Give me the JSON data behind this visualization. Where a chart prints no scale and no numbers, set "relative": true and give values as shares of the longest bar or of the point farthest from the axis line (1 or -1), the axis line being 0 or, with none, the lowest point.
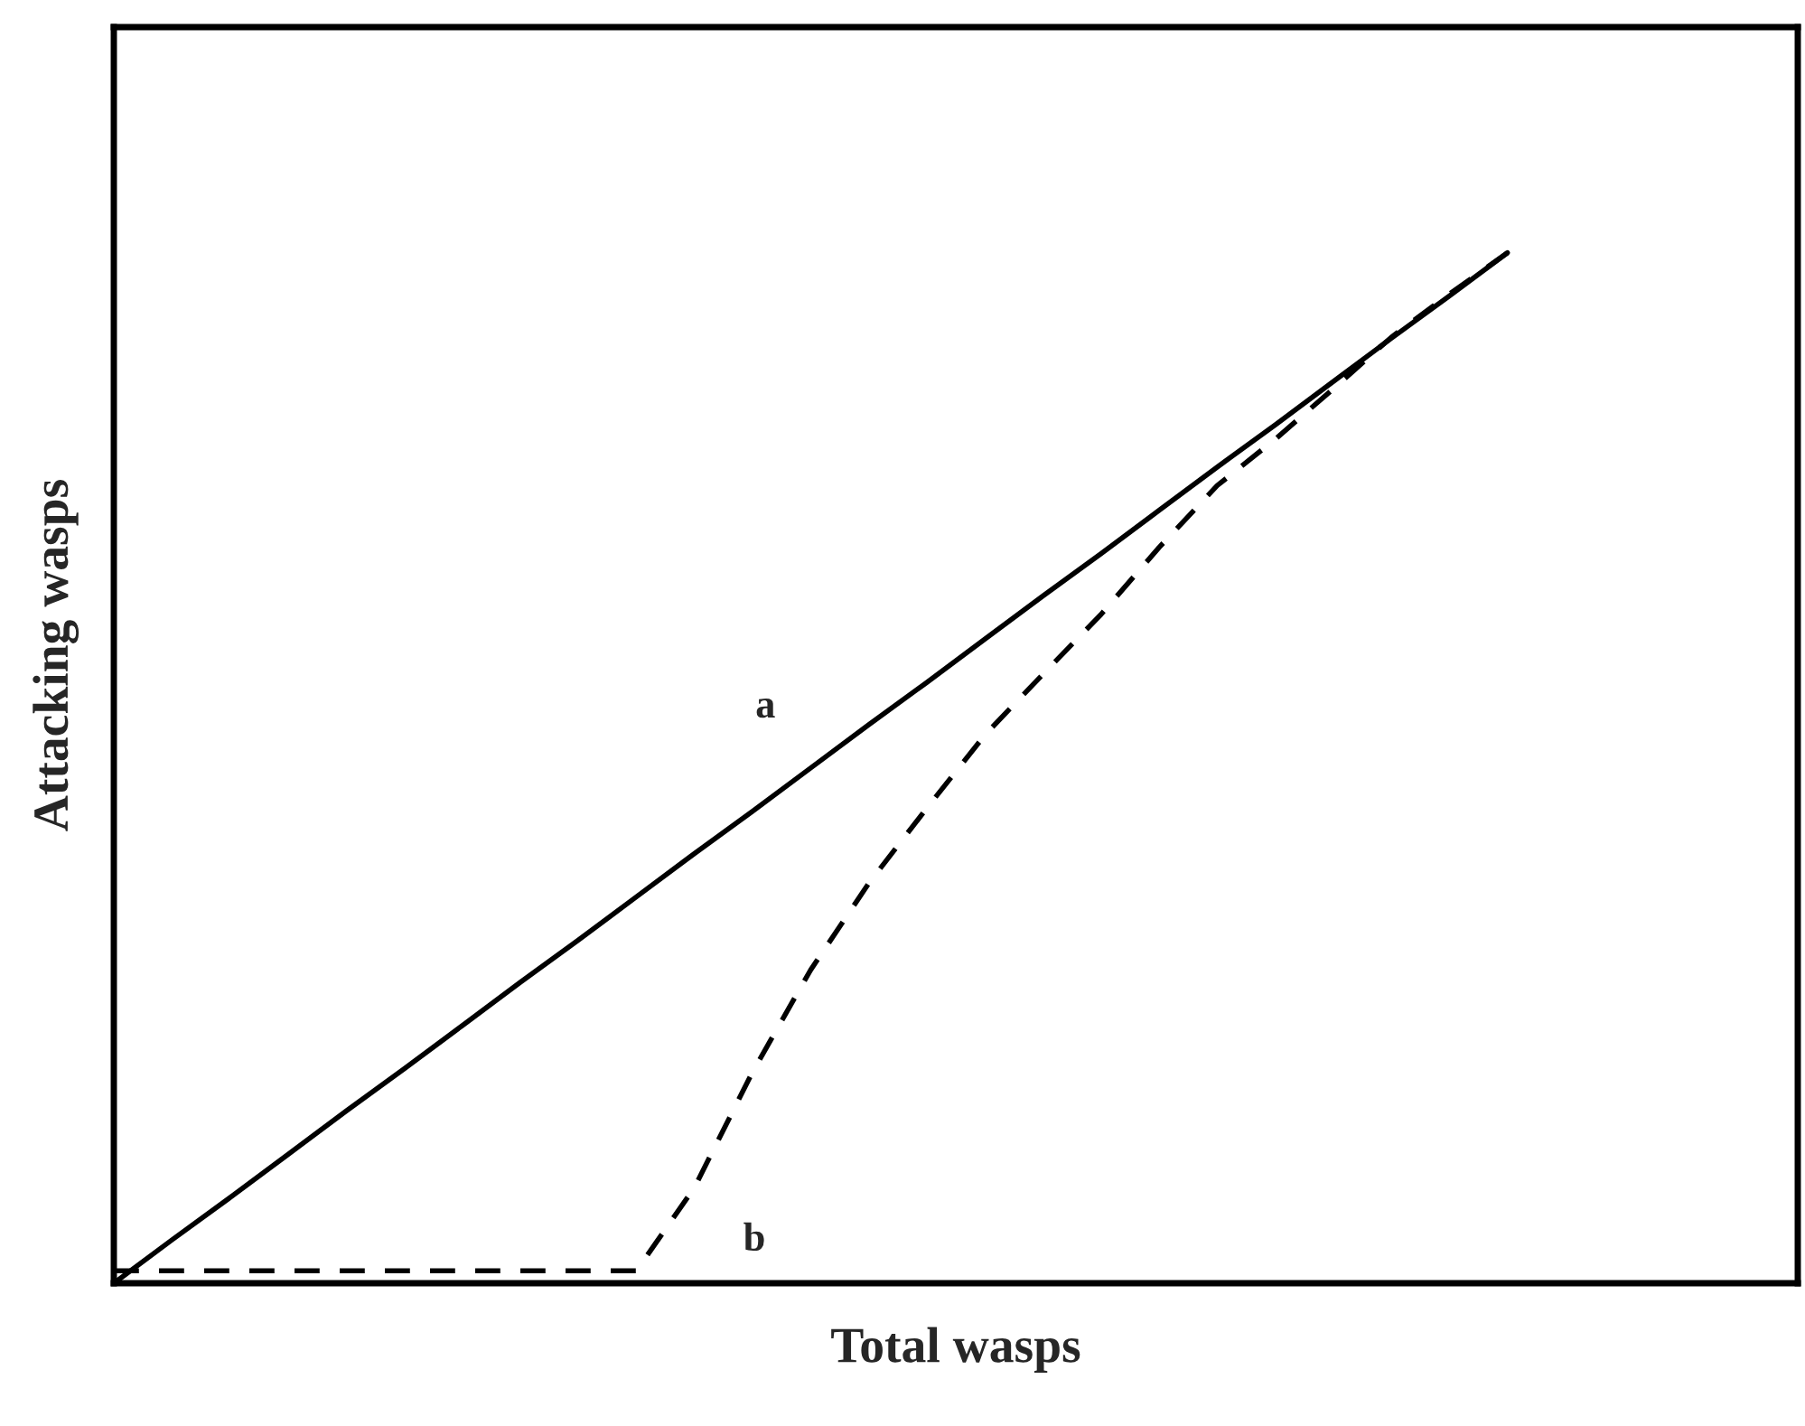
{
  "chart_data": {
    "type": "line",
    "xlabel": "Total wasps",
    "ylabel": "Attacking wasps",
    "relative": true,
    "legend": false,
    "categories": [
      null,
      null,
      null,
      null,
      null,
      null,
      null,
      null,
      null,
      null,
      null,
      null,
      null,
      null,
      null,
      null,
      null,
      null,
      null,
      null,
      null,
      null,
      null,
      null,
      null,
      null,
      null,
      null,
      null,
      null
    ],
    "series": [
      {
        "name": "a",
        "color": "#000000",
        "line_style": "solid",
        "values": [
          0,
          0.042,
          0.083,
          0.125,
          0.167,
          0.208,
          0.25,
          0.292,
          0.333,
          0.375,
          0.417,
          0.458,
          0.5,
          0.542,
          0.583,
          0.625,
          0.667,
          0.708,
          0.75,
          0.792,
          0.833,
          0.875,
          0.917,
          0.958,
          1.0,
          null,
          null,
          null,
          null,
          null
        ]
      },
      {
        "name": "b",
        "color": "#000000",
        "line_style": "dashed",
        "values": [
          0.012,
          0.012,
          0.012,
          0.012,
          0.012,
          0.012,
          0.012,
          0.012,
          0.012,
          0.012,
          0.093,
          0.205,
          0.304,
          0.388,
          0.461,
          0.532,
          0.591,
          0.649,
          0.714,
          0.774,
          0.819,
          0.868,
          0.918,
          0.96,
          1.0,
          null,
          null,
          null,
          null,
          null
        ]
      }
    ]
  }
}
